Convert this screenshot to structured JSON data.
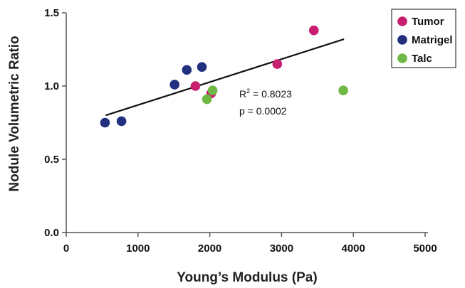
{
  "chart_data": {
    "type": "scatter",
    "xlabel": "Young’s Modulus (Pa)",
    "ylabel": "Nodule Volumetric Ratio",
    "xlim": [
      0,
      5000
    ],
    "ylim": [
      0,
      1.5
    ],
    "x_ticks": [
      "0",
      "1000",
      "2000",
      "3000",
      "4000",
      "5000"
    ],
    "y_ticks": [
      "0.0",
      "0.5",
      "1.0",
      "1.5"
    ],
    "grid": false,
    "legend_position": "top-right",
    "series": [
      {
        "name": "Tumor",
        "color": "#c81e6f",
        "points": [
          [
            1800,
            1.0
          ],
          [
            2020,
            0.95
          ],
          [
            2940,
            1.15
          ],
          [
            3450,
            1.38
          ]
        ]
      },
      {
        "name": "Matrigel",
        "color": "#22307f",
        "points": [
          [
            540,
            0.75
          ],
          [
            770,
            0.76
          ],
          [
            1510,
            1.01
          ],
          [
            1680,
            1.11
          ],
          [
            1890,
            1.13
          ]
        ]
      },
      {
        "name": "Talc",
        "color": "#6fb845",
        "points": [
          [
            1960,
            0.91
          ],
          [
            2040,
            0.97
          ],
          [
            3860,
            0.97
          ]
        ]
      }
    ],
    "fit_line": {
      "x": [
        550,
        3870
      ],
      "y": [
        0.8,
        1.32
      ]
    },
    "annotations": {
      "r2_prefix": "R",
      "r2_superscript": "2",
      "r2_value": " = 0.8023",
      "p_value": "p = 0.0002"
    }
  }
}
